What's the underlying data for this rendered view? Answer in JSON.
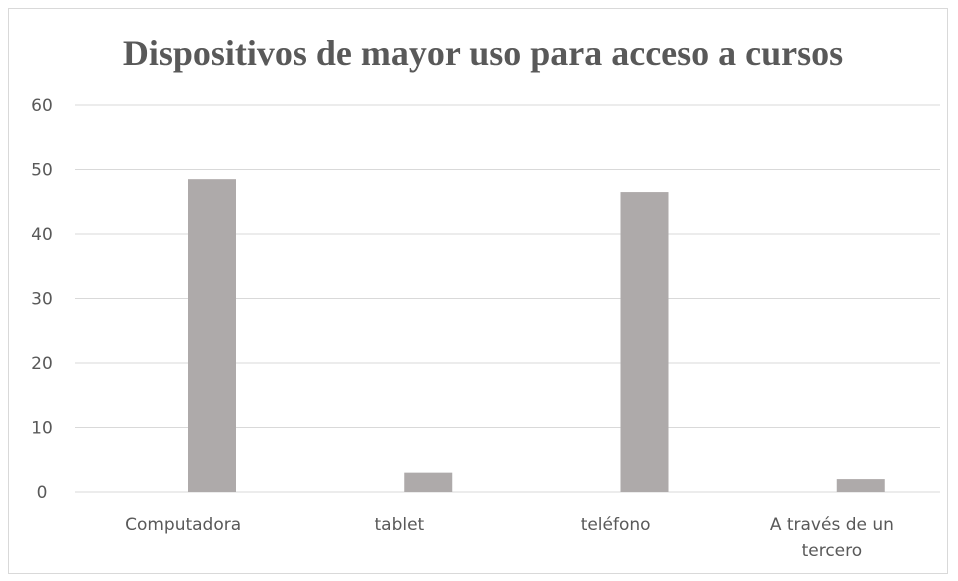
{
  "chart_data": {
    "type": "bar",
    "title": "Dispositivos de mayor uso para acceso a cursos",
    "xlabel": "",
    "ylabel": "",
    "categories": [
      [
        "Computadora"
      ],
      [
        "tablet"
      ],
      [
        "teléfono"
      ],
      [
        "A través de un",
        "tercero"
      ]
    ],
    "values": [
      48.5,
      3,
      46.5,
      2
    ],
    "yticks": [
      "0",
      "10",
      "20",
      "30",
      "40",
      "50",
      "60"
    ],
    "ylim": [
      0,
      60
    ],
    "grid": true,
    "legend": "none",
    "colors": {
      "bar": "#aeaaaa",
      "grid": "#d9d9d9",
      "text": "#595959",
      "title": "#595959"
    }
  }
}
